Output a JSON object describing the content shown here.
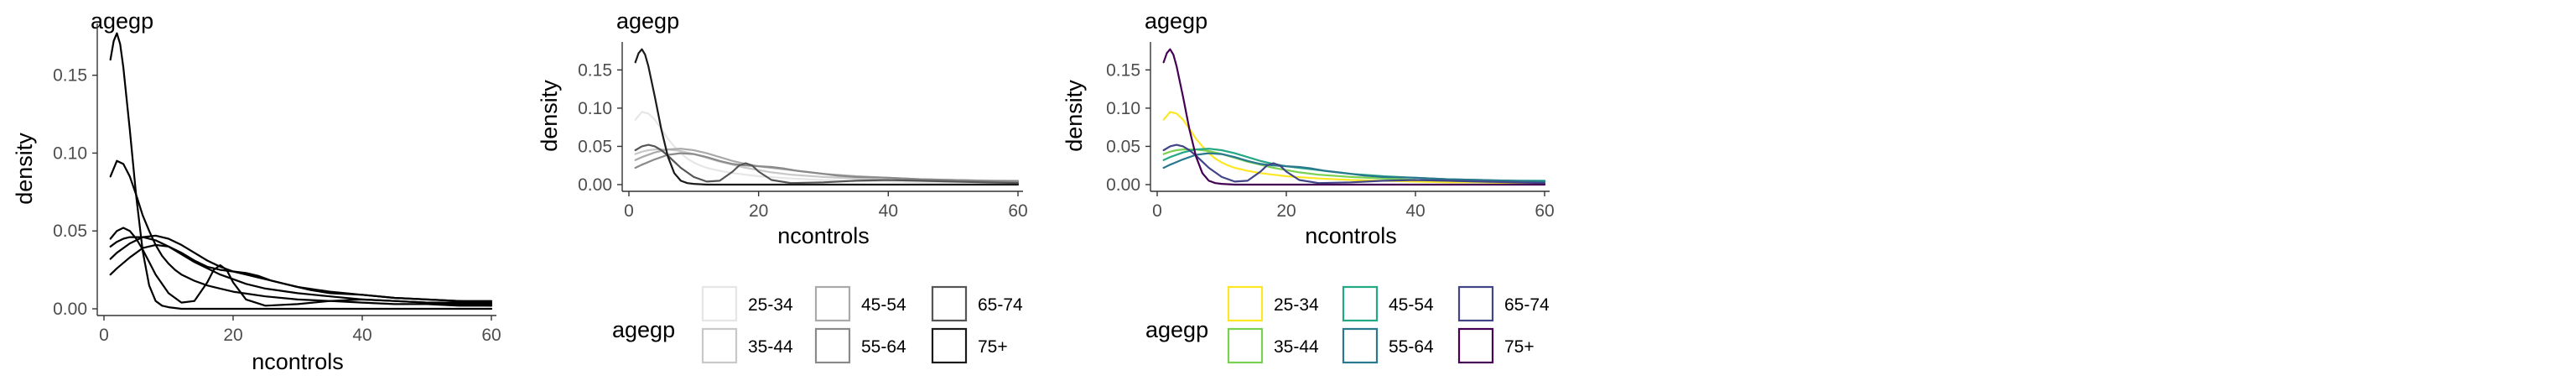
{
  "chart_data": [
    {
      "type": "line",
      "panel_title": "agegp",
      "xlabel": "ncontrols",
      "ylabel": "density",
      "xlim": [
        0,
        60
      ],
      "ylim": [
        0,
        0.18
      ],
      "x_ticks": [
        0,
        20,
        40,
        60
      ],
      "x_tick_labels": [
        "0",
        "20",
        "40",
        "60"
      ],
      "y_ticks": [
        0,
        0.05,
        0.1,
        0.15
      ],
      "y_tick_labels": [
        "0.00",
        "0.05",
        "0.10",
        "0.15"
      ],
      "grid": false,
      "legend": null,
      "color_mode": "black",
      "series": [
        {
          "name": "25-34",
          "x": [
            1,
            2,
            3,
            4,
            5,
            6,
            7,
            8,
            9,
            10,
            11,
            12,
            14,
            16,
            18,
            20,
            25,
            30,
            35,
            40,
            45,
            50,
            55,
            60
          ],
          "y": [
            0.085,
            0.095,
            0.093,
            0.085,
            0.073,
            0.06,
            0.05,
            0.041,
            0.034,
            0.029,
            0.025,
            0.022,
            0.018,
            0.015,
            0.013,
            0.011,
            0.008,
            0.006,
            0.005,
            0.004,
            0.003,
            0.003,
            0.002,
            0.002
          ]
        },
        {
          "name": "35-44",
          "x": [
            1,
            2,
            3,
            4,
            6,
            8,
            10,
            12,
            14,
            16,
            18,
            20,
            22,
            25,
            30,
            35,
            40,
            45,
            50,
            55,
            60
          ],
          "y": [
            0.04,
            0.043,
            0.045,
            0.046,
            0.046,
            0.044,
            0.04,
            0.035,
            0.03,
            0.026,
            0.022,
            0.019,
            0.016,
            0.013,
            0.01,
            0.008,
            0.006,
            0.005,
            0.004,
            0.004,
            0.003
          ]
        },
        {
          "name": "45-54",
          "x": [
            1,
            2,
            4,
            6,
            8,
            10,
            12,
            14,
            16,
            18,
            20,
            22,
            24,
            26,
            28,
            30,
            35,
            40,
            45,
            50,
            55,
            60
          ],
          "y": [
            0.032,
            0.036,
            0.042,
            0.046,
            0.047,
            0.045,
            0.041,
            0.036,
            0.031,
            0.027,
            0.024,
            0.022,
            0.02,
            0.018,
            0.016,
            0.014,
            0.011,
            0.009,
            0.007,
            0.006,
            0.005,
            0.005
          ]
        },
        {
          "name": "55-64",
          "x": [
            1,
            2,
            4,
            6,
            8,
            10,
            12,
            14,
            16,
            18,
            20,
            22,
            24,
            26,
            28,
            30,
            32,
            35,
            40,
            45,
            50,
            55,
            60
          ],
          "y": [
            0.022,
            0.026,
            0.033,
            0.039,
            0.041,
            0.04,
            0.036,
            0.031,
            0.027,
            0.025,
            0.024,
            0.023,
            0.021,
            0.018,
            0.016,
            0.014,
            0.012,
            0.01,
            0.009,
            0.007,
            0.006,
            0.005,
            0.004
          ]
        },
        {
          "name": "65-74",
          "x": [
            1,
            2,
            3,
            4,
            5,
            6,
            7,
            8,
            10,
            12,
            14,
            16,
            17,
            18,
            19,
            20,
            22,
            25,
            30,
            35,
            40,
            45,
            50,
            55,
            60
          ],
          "y": [
            0.045,
            0.05,
            0.052,
            0.05,
            0.045,
            0.038,
            0.03,
            0.022,
            0.01,
            0.004,
            0.005,
            0.017,
            0.025,
            0.028,
            0.025,
            0.017,
            0.006,
            0.002,
            0.003,
            0.005,
            0.006,
            0.005,
            0.004,
            0.003,
            0.002
          ]
        },
        {
          "name": "75+",
          "x": [
            1,
            1.5,
            2,
            2.5,
            3,
            4,
            5,
            6,
            7,
            8,
            9,
            10,
            12,
            14,
            16,
            18,
            20,
            25,
            30,
            40,
            50,
            60
          ],
          "y": [
            0.16,
            0.172,
            0.177,
            0.17,
            0.155,
            0.115,
            0.072,
            0.037,
            0.015,
            0.005,
            0.002,
            0.001,
            0,
            0,
            0,
            0,
            0,
            0,
            0,
            0,
            0,
            0
          ]
        }
      ]
    },
    {
      "type": "line",
      "panel_title": "agegp",
      "xlabel": "ncontrols",
      "ylabel": "density",
      "xlim": [
        0,
        60
      ],
      "ylim": [
        0,
        0.18
      ],
      "x_ticks": [
        0,
        20,
        40,
        60
      ],
      "x_tick_labels": [
        "0",
        "20",
        "40",
        "60"
      ],
      "y_ticks": [
        0,
        0.05,
        0.1,
        0.15
      ],
      "y_tick_labels": [
        "0.00",
        "0.05",
        "0.10",
        "0.15"
      ],
      "grid": false,
      "legend": {
        "title": "agegp",
        "position": "bottom",
        "entries": [
          "25-34",
          "35-44",
          "45-54",
          "55-64",
          "65-74",
          "75+"
        ],
        "colors": [
          "#e6e6e6",
          "#c8c8c8",
          "#aaaaaa",
          "#8a8a8a",
          "#555555",
          "#1a1a1a"
        ]
      },
      "series_colors": [
        "#e6e6e6",
        "#c8c8c8",
        "#aaaaaa",
        "#8a8a8a",
        "#555555",
        "#1a1a1a"
      ],
      "same_series_as_panel": 0
    },
    {
      "type": "line",
      "panel_title": "agegp",
      "xlabel": "ncontrols",
      "ylabel": "density",
      "xlim": [
        0,
        60
      ],
      "ylim": [
        0,
        0.18
      ],
      "x_ticks": [
        0,
        20,
        40,
        60
      ],
      "x_tick_labels": [
        "0",
        "20",
        "40",
        "60"
      ],
      "y_ticks": [
        0,
        0.05,
        0.1,
        0.15
      ],
      "y_tick_labels": [
        "0.00",
        "0.05",
        "0.10",
        "0.15"
      ],
      "grid": false,
      "legend": {
        "title": "agegp",
        "position": "bottom",
        "entries": [
          "25-34",
          "35-44",
          "45-54",
          "55-64",
          "65-74",
          "75+"
        ],
        "colors": [
          "#fde725",
          "#7ad151",
          "#22a884",
          "#2a788e",
          "#414487",
          "#440154"
        ]
      },
      "series_colors": [
        "#fde725",
        "#7ad151",
        "#22a884",
        "#2a788e",
        "#414487",
        "#440154"
      ],
      "same_series_as_panel": 0
    }
  ]
}
